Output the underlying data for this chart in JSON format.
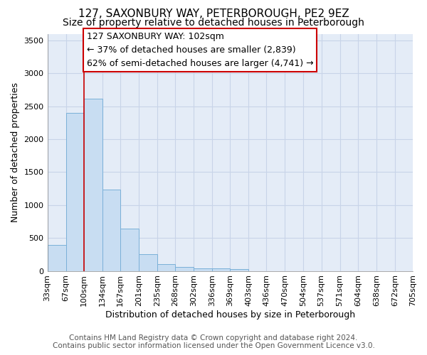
{
  "title": "127, SAXONBURY WAY, PETERBOROUGH, PE2 9EZ",
  "subtitle": "Size of property relative to detached houses in Peterborough",
  "xlabel": "Distribution of detached houses by size in Peterborough",
  "ylabel": "Number of detached properties",
  "footnote1": "Contains HM Land Registry data © Crown copyright and database right 2024.",
  "footnote2": "Contains public sector information licensed under the Open Government Licence v3.0.",
  "annotation_line1": "127 SAXONBURY WAY: 102sqm",
  "annotation_line2": "← 37% of detached houses are smaller (2,839)",
  "annotation_line3": "62% of semi-detached houses are larger (4,741) →",
  "bar_edges": [
    33,
    67,
    100,
    134,
    167,
    201,
    235,
    268,
    302,
    336,
    369,
    403,
    436,
    470,
    504,
    537,
    571,
    604,
    638,
    672,
    705
  ],
  "bar_heights": [
    390,
    2400,
    2610,
    1240,
    640,
    250,
    100,
    55,
    40,
    40,
    30,
    0,
    0,
    0,
    0,
    0,
    0,
    0,
    0,
    0
  ],
  "bar_color": "#c8ddf2",
  "bar_edge_color": "#7ab0d8",
  "grid_color": "#c8d4e8",
  "bg_color": "#e4ecf7",
  "vline_x": 100,
  "vline_color": "#cc0000",
  "ylim": [
    0,
    3600
  ],
  "yticks": [
    0,
    500,
    1000,
    1500,
    2000,
    2500,
    3000,
    3500
  ],
  "title_fontsize": 11,
  "subtitle_fontsize": 10,
  "xlabel_fontsize": 9,
  "ylabel_fontsize": 9,
  "tick_fontsize": 8,
  "annotation_fontsize": 9,
  "footnote_fontsize": 7.5
}
